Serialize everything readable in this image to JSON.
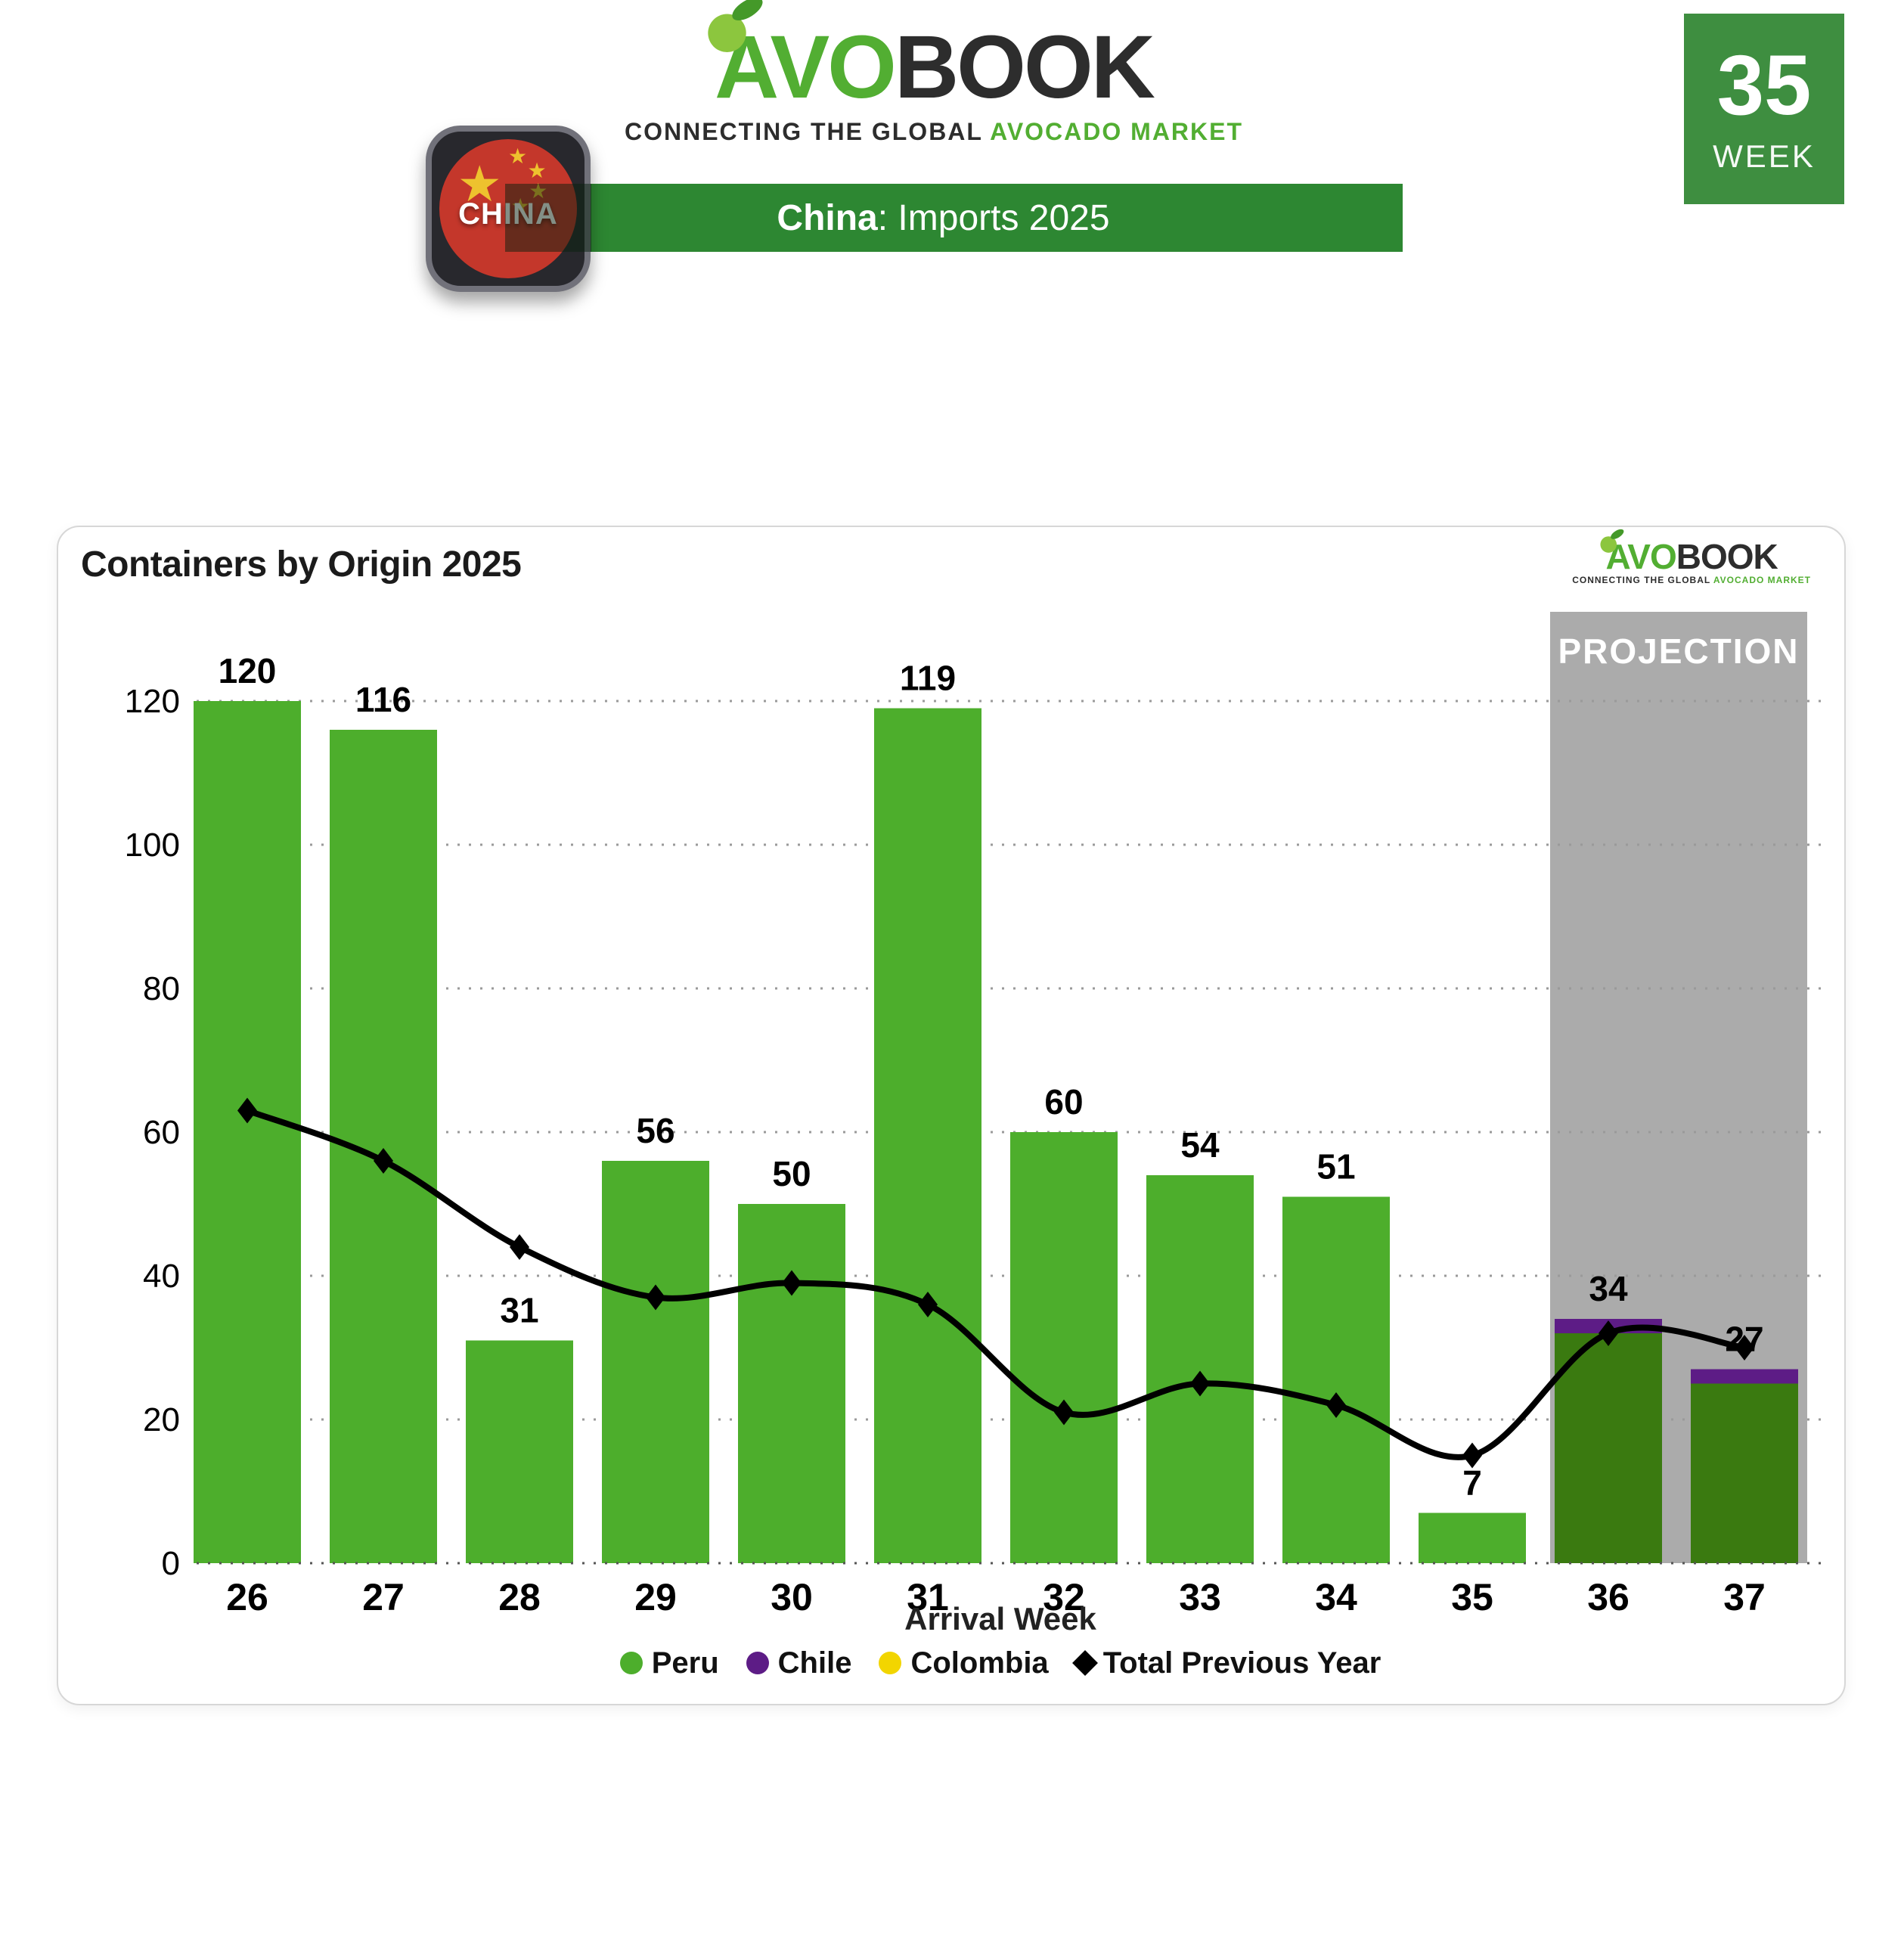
{
  "header": {
    "logo": {
      "part1": "AVO",
      "part2": "BOOK",
      "tagline_dark": "CONNECTING THE GLOBAL",
      "tagline_green": "AVOCADO MARKET"
    },
    "flag_label": "CHINA",
    "banner": {
      "country": "China",
      "rest": ": Imports 2025"
    },
    "week_badge": {
      "number": "35",
      "label": "WEEK"
    }
  },
  "theme": {
    "brand_green": "#52ae32",
    "brand_dark": "#2d2d2d",
    "banner_green": "#2d8732",
    "badge_green": "#3e8e40",
    "flag_red": "#c4372b",
    "star_yellow": "#eec22e"
  },
  "card": {
    "title": "Containers by Origin 2025",
    "logo": {
      "part1": "AVO",
      "part2": "BOOK",
      "tagline_dark": "CONNECTING THE GLOBAL",
      "tagline_green": "AVOCADO MARKET"
    }
  },
  "chart_data": {
    "type": "bar",
    "title": "Containers by Origin 2025",
    "x_title": "Arrival Week",
    "categories": [
      26,
      27,
      28,
      29,
      30,
      31,
      32,
      33,
      34,
      35,
      36,
      37
    ],
    "series": [
      {
        "name": "Peru",
        "color": "#4dae2c",
        "projected_color": "#3a7a10",
        "values": [
          120,
          116,
          31,
          56,
          50,
          119,
          60,
          54,
          51,
          7,
          32,
          25
        ]
      },
      {
        "name": "Chile",
        "color": "#5d1c86",
        "projected_color": "#5d1c86",
        "values": [
          0,
          0,
          0,
          0,
          0,
          0,
          0,
          0,
          0,
          0,
          2,
          2
        ]
      },
      {
        "name": "Colombia",
        "color": "#f2d500",
        "projected_color": "#f2d500",
        "values": [
          0,
          0,
          0,
          0,
          0,
          0,
          0,
          0,
          0,
          0,
          0,
          0
        ]
      }
    ],
    "bar_total_labels": [
      120,
      116,
      31,
      56,
      50,
      119,
      60,
      54,
      51,
      7,
      34,
      27
    ],
    "line": {
      "name": "Total Previous Year",
      "color": "#000000",
      "values": [
        63,
        56,
        44,
        37,
        39,
        36,
        21,
        25,
        22,
        15,
        32,
        30
      ]
    },
    "projection": {
      "label": "PROJECTION",
      "start_week": 36,
      "end_week": 37,
      "band_color": "#ababab",
      "text_color": "#ffffff"
    },
    "y_axis": {
      "min": 0,
      "max": 120,
      "step": 20
    },
    "grid": true,
    "grid_color": "#9a9a9a",
    "legend_position": "bottom"
  }
}
